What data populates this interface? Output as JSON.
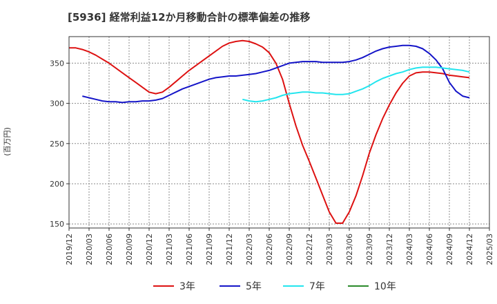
{
  "chart_data": {
    "type": "line",
    "title": "[5936]  経常利益12か月移動合計の標準偏差の推移",
    "xlabel": "",
    "ylabel": "(百万円)",
    "ylim": [
      145,
      383
    ],
    "yticks": [
      150,
      200,
      250,
      300,
      350
    ],
    "x_tick_labels": [
      "2019/12",
      "2020/03",
      "2020/06",
      "2020/09",
      "2020/12",
      "2021/03",
      "2021/06",
      "2021/09",
      "2021/12",
      "2022/03",
      "2022/06",
      "2022/09",
      "2022/12",
      "2023/03",
      "2023/06",
      "2023/09",
      "2023/12",
      "2024/03",
      "2024/06",
      "2024/09",
      "2024/12",
      "2025/03"
    ],
    "grid": true,
    "legend_position": "bottom",
    "series": [
      {
        "name": "3年",
        "color": "#dd1111",
        "points": [
          [
            "2019/12",
            369
          ],
          [
            "2020/01",
            369
          ],
          [
            "2020/02",
            367
          ],
          [
            "2020/03",
            364
          ],
          [
            "2020/04",
            360
          ],
          [
            "2020/05",
            355
          ],
          [
            "2020/06",
            350
          ],
          [
            "2020/07",
            344
          ],
          [
            "2020/08",
            338
          ],
          [
            "2020/09",
            332
          ],
          [
            "2020/10",
            326
          ],
          [
            "2020/11",
            320
          ],
          [
            "2020/12",
            314
          ],
          [
            "2021/01",
            312
          ],
          [
            "2021/02",
            314
          ],
          [
            "2021/03",
            320
          ],
          [
            "2021/04",
            327
          ],
          [
            "2021/05",
            334
          ],
          [
            "2021/06",
            341
          ],
          [
            "2021/07",
            347
          ],
          [
            "2021/08",
            353
          ],
          [
            "2021/09",
            359
          ],
          [
            "2021/10",
            365
          ],
          [
            "2021/11",
            371
          ],
          [
            "2021/12",
            375
          ],
          [
            "2022/01",
            377
          ],
          [
            "2022/02",
            378
          ],
          [
            "2022/03",
            377
          ],
          [
            "2022/04",
            374
          ],
          [
            "2022/05",
            370
          ],
          [
            "2022/06",
            363
          ],
          [
            "2022/07",
            350
          ],
          [
            "2022/08",
            330
          ],
          [
            "2022/09",
            300
          ],
          [
            "2022/10",
            272
          ],
          [
            "2022/11",
            248
          ],
          [
            "2022/12",
            228
          ],
          [
            "2023/01",
            207
          ],
          [
            "2023/02",
            186
          ],
          [
            "2023/03",
            165
          ],
          [
            "2023/04",
            151
          ],
          [
            "2023/05",
            151
          ],
          [
            "2023/06",
            165
          ],
          [
            "2023/07",
            185
          ],
          [
            "2023/08",
            210
          ],
          [
            "2023/09",
            238
          ],
          [
            "2023/10",
            261
          ],
          [
            "2023/11",
            281
          ],
          [
            "2023/12",
            298
          ],
          [
            "2024/01",
            313
          ],
          [
            "2024/02",
            325
          ],
          [
            "2024/03",
            334
          ],
          [
            "2024/04",
            338
          ],
          [
            "2024/05",
            339
          ],
          [
            "2024/06",
            339
          ],
          [
            "2024/07",
            338
          ],
          [
            "2024/08",
            337
          ],
          [
            "2024/09",
            335
          ],
          [
            "2024/10",
            334
          ],
          [
            "2024/11",
            333
          ],
          [
            "2024/12",
            332
          ]
        ]
      },
      {
        "name": "5年",
        "color": "#1414c8",
        "points": [
          [
            "2020/02",
            309
          ],
          [
            "2020/03",
            307
          ],
          [
            "2020/04",
            305
          ],
          [
            "2020/05",
            303
          ],
          [
            "2020/06",
            302
          ],
          [
            "2020/07",
            302
          ],
          [
            "2020/08",
            301
          ],
          [
            "2020/09",
            302
          ],
          [
            "2020/10",
            302
          ],
          [
            "2020/11",
            303
          ],
          [
            "2020/12",
            303
          ],
          [
            "2021/01",
            304
          ],
          [
            "2021/02",
            306
          ],
          [
            "2021/03",
            310
          ],
          [
            "2021/04",
            314
          ],
          [
            "2021/05",
            318
          ],
          [
            "2021/06",
            321
          ],
          [
            "2021/07",
            324
          ],
          [
            "2021/08",
            327
          ],
          [
            "2021/09",
            330
          ],
          [
            "2021/10",
            332
          ],
          [
            "2021/11",
            333
          ],
          [
            "2021/12",
            334
          ],
          [
            "2022/01",
            334
          ],
          [
            "2022/02",
            335
          ],
          [
            "2022/03",
            336
          ],
          [
            "2022/04",
            337
          ],
          [
            "2022/05",
            339
          ],
          [
            "2022/06",
            341
          ],
          [
            "2022/07",
            344
          ],
          [
            "2022/08",
            347
          ],
          [
            "2022/09",
            350
          ],
          [
            "2022/10",
            351
          ],
          [
            "2022/11",
            352
          ],
          [
            "2022/12",
            352
          ],
          [
            "2023/01",
            352
          ],
          [
            "2023/02",
            351
          ],
          [
            "2023/03",
            351
          ],
          [
            "2023/04",
            351
          ],
          [
            "2023/05",
            351
          ],
          [
            "2023/06",
            352
          ],
          [
            "2023/07",
            354
          ],
          [
            "2023/08",
            357
          ],
          [
            "2023/09",
            361
          ],
          [
            "2023/10",
            365
          ],
          [
            "2023/11",
            368
          ],
          [
            "2023/12",
            370
          ],
          [
            "2024/01",
            371
          ],
          [
            "2024/02",
            372
          ],
          [
            "2024/03",
            372
          ],
          [
            "2024/04",
            371
          ],
          [
            "2024/05",
            368
          ],
          [
            "2024/06",
            362
          ],
          [
            "2024/07",
            354
          ],
          [
            "2024/08",
            343
          ],
          [
            "2024/09",
            326
          ],
          [
            "2024/10",
            315
          ],
          [
            "2024/11",
            309
          ],
          [
            "2024/12",
            307
          ]
        ]
      },
      {
        "name": "7年",
        "color": "#22e5ee",
        "points": [
          [
            "2022/02",
            305
          ],
          [
            "2022/03",
            303
          ],
          [
            "2022/04",
            302
          ],
          [
            "2022/05",
            303
          ],
          [
            "2022/06",
            305
          ],
          [
            "2022/07",
            307
          ],
          [
            "2022/08",
            310
          ],
          [
            "2022/09",
            312
          ],
          [
            "2022/10",
            313
          ],
          [
            "2022/11",
            314
          ],
          [
            "2022/12",
            314
          ],
          [
            "2023/01",
            313
          ],
          [
            "2023/02",
            313
          ],
          [
            "2023/03",
            312
          ],
          [
            "2023/04",
            311
          ],
          [
            "2023/05",
            311
          ],
          [
            "2023/06",
            312
          ],
          [
            "2023/07",
            315
          ],
          [
            "2023/08",
            318
          ],
          [
            "2023/09",
            322
          ],
          [
            "2023/10",
            327
          ],
          [
            "2023/11",
            331
          ],
          [
            "2023/12",
            334
          ],
          [
            "2024/01",
            337
          ],
          [
            "2024/02",
            339
          ],
          [
            "2024/03",
            342
          ],
          [
            "2024/04",
            344
          ],
          [
            "2024/05",
            345
          ],
          [
            "2024/06",
            345
          ],
          [
            "2024/07",
            345
          ],
          [
            "2024/08",
            344
          ],
          [
            "2024/09",
            343
          ],
          [
            "2024/10",
            342
          ],
          [
            "2024/11",
            341
          ],
          [
            "2024/12",
            339
          ]
        ]
      },
      {
        "name": "10年",
        "color": "#2a8a2a",
        "points": []
      }
    ]
  }
}
